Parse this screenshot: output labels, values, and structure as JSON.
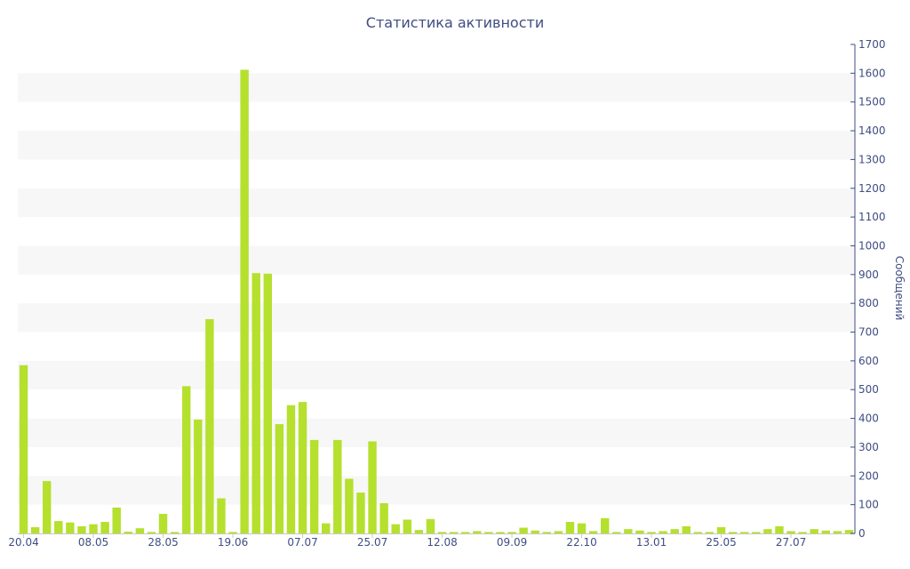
{
  "chart_data": {
    "type": "bar",
    "title": "Статистика активности",
    "xlabel": "",
    "ylabel": "Сообщений",
    "ylim": [
      0,
      1700
    ],
    "y_ticks": [
      0,
      100,
      200,
      300,
      400,
      500,
      600,
      700,
      800,
      900,
      1000,
      1100,
      1200,
      1300,
      1400,
      1500,
      1600,
      1700
    ],
    "y_axis_side": "right",
    "grid": "alternating horizontal bands",
    "x_tick_labels": [
      {
        "index": 0,
        "label": "20.04"
      },
      {
        "index": 6,
        "label": "08.05"
      },
      {
        "index": 12,
        "label": "28.05"
      },
      {
        "index": 18,
        "label": "19.06"
      },
      {
        "index": 24,
        "label": "07.07"
      },
      {
        "index": 30,
        "label": "25.07"
      },
      {
        "index": 36,
        "label": "12.08"
      },
      {
        "index": 42,
        "label": "09.09"
      },
      {
        "index": 48,
        "label": "22.10"
      },
      {
        "index": 54,
        "label": "13.01"
      },
      {
        "index": 60,
        "label": "25.05"
      },
      {
        "index": 66,
        "label": "27.07"
      }
    ],
    "values": [
      585,
      22,
      182,
      43,
      38,
      25,
      32,
      40,
      90,
      6,
      18,
      5,
      68,
      5,
      512,
      396,
      745,
      122,
      5,
      1612,
      905,
      903,
      380,
      446,
      457,
      325,
      35,
      325,
      190,
      142,
      320,
      105,
      32,
      48,
      12,
      50,
      5,
      5,
      5,
      8,
      5,
      5,
      5,
      20,
      10,
      5,
      8,
      40,
      35,
      8,
      53,
      5,
      15,
      10,
      5,
      8,
      15,
      25,
      5,
      5,
      22,
      5,
      5,
      5,
      15,
      25,
      8,
      5,
      15,
      10,
      8,
      12
    ],
    "colors": {
      "bar": "#b5e02e",
      "text": "#3f4d82",
      "band": "#f7f7f7",
      "axis": "#3f4d82"
    }
  }
}
